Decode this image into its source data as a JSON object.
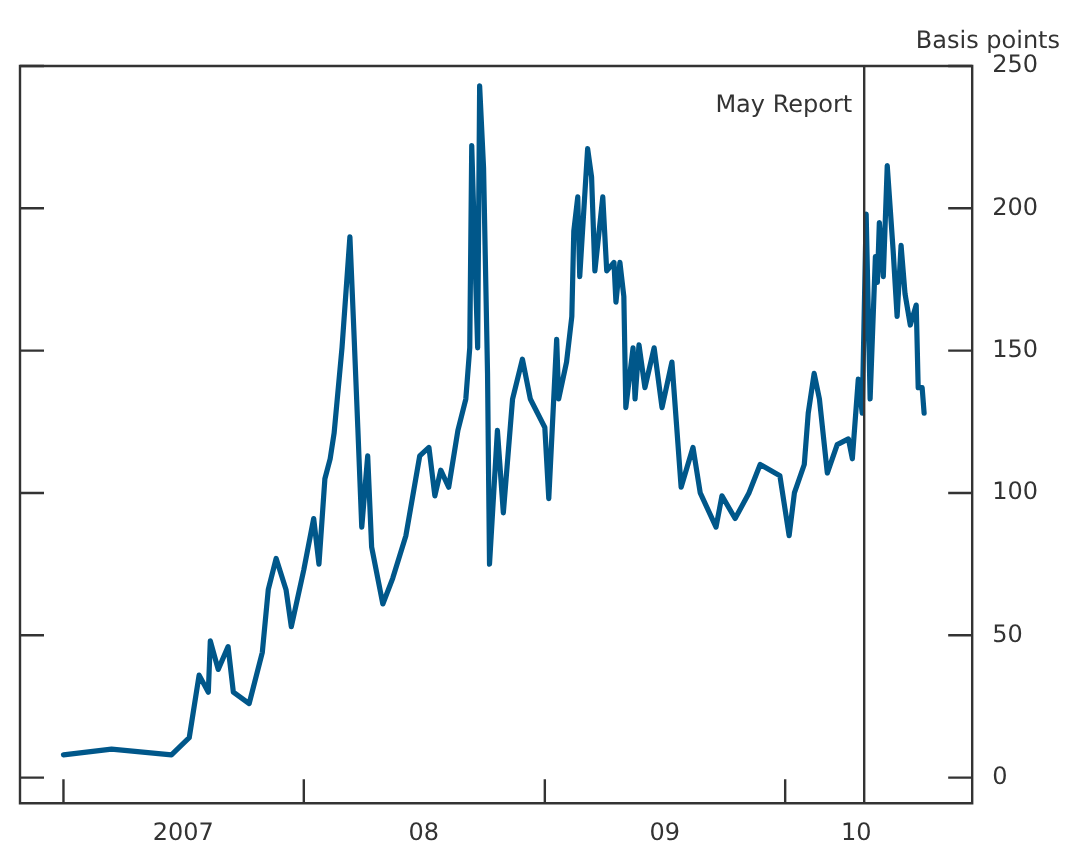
{
  "chart_data": {
    "type": "line",
    "ylabel": "Basis points",
    "xlim": [
      "2006-10-27",
      "2010-10-12"
    ],
    "ylim": [
      -9,
      250
    ],
    "yticks": [
      0,
      50,
      100,
      150,
      200,
      250
    ],
    "xticks": [
      {
        "value": "2007-01-01",
        "label": null
      },
      {
        "value": "2007-07-02",
        "label": "2007"
      },
      {
        "value": "2008-01-01",
        "label": null
      },
      {
        "value": "2008-07-01",
        "label": "08"
      },
      {
        "value": "2009-01-01",
        "label": null
      },
      {
        "value": "2009-07-02",
        "label": "09"
      },
      {
        "value": "2010-01-01",
        "label": null
      },
      {
        "value": "2010-04-19",
        "label": "10"
      }
    ],
    "tick_labels": "xy",
    "grid": false,
    "legend": false,
    "marker": "none",
    "line_style": "solid",
    "ref_lines": [
      {
        "axis": "x",
        "value": "2010-05-01",
        "label": "May Report",
        "color": "#333333"
      }
    ],
    "x": [
      "2007-01-01",
      "2007-03-15",
      "2007-06-14",
      "2007-07-11",
      "2007-07-26",
      "2007-08-09",
      "2007-08-12",
      "2007-08-24",
      "2007-09-08",
      "2007-09-16",
      "2007-10-10",
      "2007-10-30",
      "2007-11-08",
      "2007-11-20",
      "2007-12-05",
      "2007-12-13",
      "2008-01-01",
      "2008-01-16",
      "2008-01-24",
      "2008-02-02",
      "2008-02-10",
      "2008-02-16",
      "2008-02-28",
      "2008-03-11",
      "2008-03-17",
      "2008-03-23",
      "2008-03-29",
      "2008-04-07",
      "2008-04-13",
      "2008-04-30",
      "2008-05-15",
      "2008-06-04",
      "2008-06-25",
      "2008-07-09",
      "2008-07-18",
      "2008-07-27",
      "2008-08-08",
      "2008-08-22",
      "2008-09-03",
      "2008-09-09",
      "2008-09-12",
      "2008-09-21",
      "2008-09-24",
      "2008-09-30",
      "2008-10-06",
      "2008-10-09",
      "2008-10-21",
      "2008-10-30",
      "2008-11-13",
      "2008-11-28",
      "2008-12-10",
      "2009-01-01",
      "2009-01-07",
      "2009-01-19",
      "2009-01-22",
      "2009-02-03",
      "2009-02-11",
      "2009-02-14",
      "2009-02-20",
      "2009-02-23",
      "2009-03-07",
      "2009-03-13",
      "2009-03-18",
      "2009-03-30",
      "2009-04-05",
      "2009-04-16",
      "2009-04-19",
      "2009-04-25",
      "2009-05-01",
      "2009-05-04",
      "2009-05-15",
      "2009-05-18",
      "2009-05-24",
      "2009-06-02",
      "2009-06-16",
      "2009-06-28",
      "2009-07-13",
      "2009-07-27",
      "2009-08-05",
      "2009-08-14",
      "2009-08-25",
      "2009-09-18",
      "2009-09-27",
      "2009-10-17",
      "2009-11-07",
      "2009-11-24",
      "2009-12-24",
      "2010-01-07",
      "2010-01-15",
      "2010-01-30",
      "2010-02-05",
      "2010-02-14",
      "2010-02-22",
      "2010-03-06",
      "2010-03-21",
      "2010-04-07",
      "2010-04-13",
      "2010-04-22",
      "2010-04-28",
      "2010-05-04",
      "2010-05-10",
      "2010-05-18",
      "2010-05-21",
      "2010-05-24",
      "2010-05-30",
      "2010-06-05",
      "2010-06-14",
      "2010-06-20",
      "2010-06-26",
      "2010-07-02",
      "2010-07-10",
      "2010-07-19",
      "2010-07-22",
      "2010-07-28",
      "2010-07-31"
    ],
    "series": [
      {
        "color": "#00578a",
        "values": [
          8,
          10,
          8,
          14,
          36,
          30,
          48,
          38,
          46,
          30,
          26,
          44,
          66,
          77,
          66,
          53,
          73,
          91,
          75,
          105,
          112,
          121,
          151,
          190,
          157,
          123,
          88,
          113,
          81,
          61,
          70,
          85,
          113,
          116,
          99,
          108,
          102,
          122,
          133,
          151,
          222,
          151,
          243,
          214,
          142,
          75,
          122,
          93,
          133,
          147,
          133,
          123,
          98,
          154,
          133,
          146,
          162,
          192,
          204,
          176,
          221,
          211,
          178,
          204,
          178,
          181,
          167,
          181,
          169,
          130,
          151,
          133,
          152,
          137,
          151,
          130,
          146,
          102,
          109,
          116,
          100,
          88,
          99,
          91,
          100,
          110,
          106,
          85,
          100,
          110,
          128,
          142,
          133,
          107,
          117,
          119,
          112,
          140,
          128,
          198,
          133,
          183,
          174,
          195,
          176,
          215,
          185,
          162,
          187,
          170,
          159,
          166,
          137,
          137,
          128
        ]
      }
    ]
  }
}
